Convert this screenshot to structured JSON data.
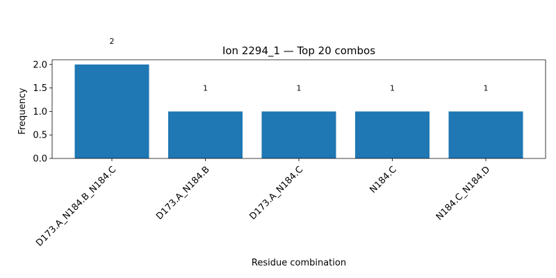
{
  "chart_data": {
    "type": "bar",
    "title": "Ion 2294_1 — Top 20 combos",
    "xlabel": "Residue combination",
    "ylabel": "Frequency",
    "categories": [
      "D173.A_N184.B_N184.C",
      "D173.A_N184.B",
      "D173.A_N184.C",
      "N184.C",
      "N184.C_N184.D"
    ],
    "values": [
      2,
      1,
      1,
      1,
      1
    ],
    "data_labels": [
      "2",
      "1",
      "1",
      "1",
      "1"
    ],
    "ylim": [
      0,
      2.1
    ],
    "yticks": [
      "0.0",
      "0.5",
      "1.0",
      "1.5",
      "2.0"
    ],
    "grid": false,
    "bar_color": "#1f77b4"
  }
}
